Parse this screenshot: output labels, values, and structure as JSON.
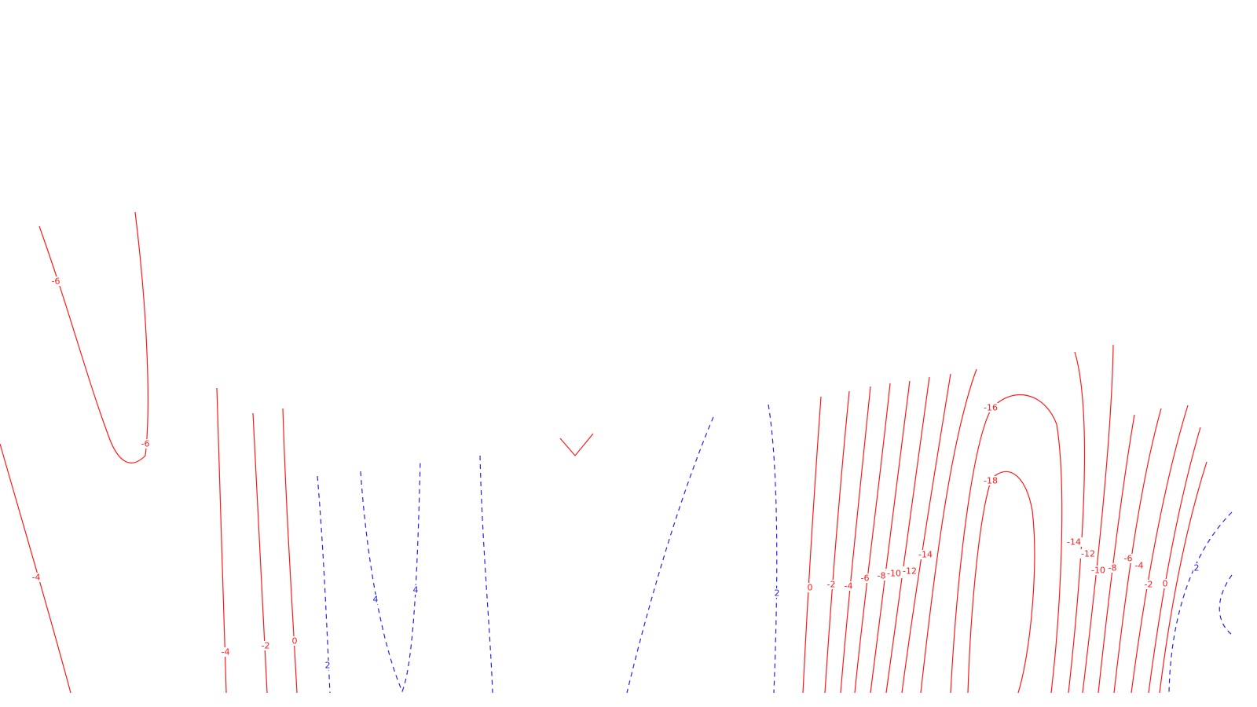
{
  "map": {
    "colors": {
      "negative": "#ff1a1a",
      "positive": "#2222ee",
      "background": "#ffffff"
    },
    "contour_labels": [
      "-6",
      "-6",
      "-4",
      "-4",
      "-2",
      "0",
      "2",
      "4",
      "4",
      "2",
      "0",
      "-2",
      "-4",
      "-6",
      "-8",
      "-10",
      "-12",
      "-14",
      "-16",
      "-18",
      "-14",
      "-12",
      "-10",
      "-8",
      "-6",
      "-4",
      "-2",
      "0",
      "2"
    ]
  }
}
